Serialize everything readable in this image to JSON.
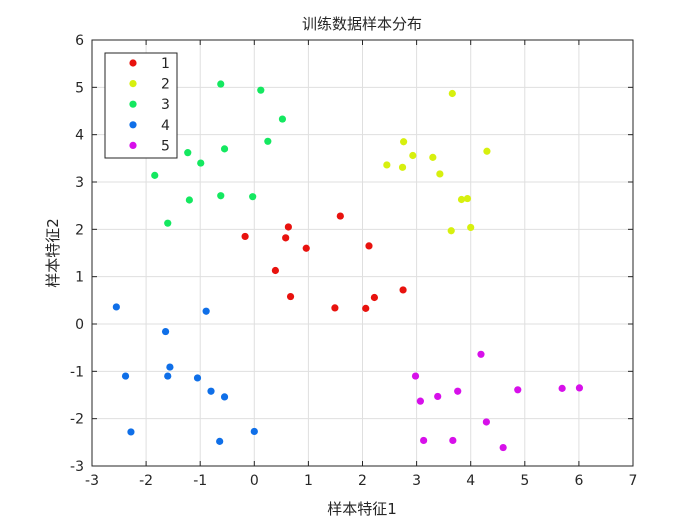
{
  "chart_data": {
    "type": "scatter",
    "title": "训练数据样本分布",
    "xlabel": "样本特征1",
    "ylabel": "样本特征2",
    "xlim": [
      -3,
      7
    ],
    "ylim": [
      -3,
      6
    ],
    "xticks": [
      -3,
      -2,
      -1,
      0,
      1,
      2,
      3,
      4,
      5,
      6,
      7
    ],
    "yticks": [
      -3,
      -2,
      -1,
      0,
      1,
      2,
      3,
      4,
      5,
      6
    ],
    "grid": true,
    "legend_position": "top-left",
    "series": [
      {
        "name": "1",
        "color": "#e8120e",
        "points": [
          [
            -0.17,
            1.85
          ],
          [
            0.39,
            1.13
          ],
          [
            0.58,
            1.82
          ],
          [
            0.63,
            2.05
          ],
          [
            0.67,
            0.58
          ],
          [
            0.96,
            1.6
          ],
          [
            1.49,
            0.34
          ],
          [
            1.59,
            2.28
          ],
          [
            2.06,
            0.33
          ],
          [
            2.12,
            1.65
          ],
          [
            2.22,
            0.56
          ],
          [
            2.75,
            0.72
          ]
        ]
      },
      {
        "name": "2",
        "color": "#d7f00e",
        "points": [
          [
            2.45,
            3.36
          ],
          [
            2.74,
            3.31
          ],
          [
            2.76,
            3.85
          ],
          [
            2.93,
            3.56
          ],
          [
            3.3,
            3.52
          ],
          [
            3.43,
            3.17
          ],
          [
            3.64,
            1.97
          ],
          [
            3.66,
            4.87
          ],
          [
            3.83,
            2.63
          ],
          [
            3.94,
            2.65
          ],
          [
            4.0,
            2.04
          ],
          [
            4.3,
            3.65
          ]
        ]
      },
      {
        "name": "3",
        "color": "#14e860",
        "points": [
          [
            -1.84,
            3.14
          ],
          [
            -1.6,
            2.13
          ],
          [
            -1.23,
            3.62
          ],
          [
            -1.2,
            2.62
          ],
          [
            -0.99,
            3.4
          ],
          [
            -0.62,
            5.07
          ],
          [
            -0.62,
            2.71
          ],
          [
            -0.55,
            3.7
          ],
          [
            -0.03,
            2.69
          ],
          [
            0.12,
            4.94
          ],
          [
            0.25,
            3.86
          ],
          [
            0.52,
            4.33
          ]
        ]
      },
      {
        "name": "4",
        "color": "#0f6fe8",
        "points": [
          [
            -2.55,
            0.36
          ],
          [
            -2.38,
            -1.1
          ],
          [
            -2.28,
            -2.28
          ],
          [
            -1.64,
            -0.16
          ],
          [
            -1.6,
            -1.1
          ],
          [
            -1.56,
            -0.91
          ],
          [
            -1.05,
            -1.14
          ],
          [
            -0.89,
            0.27
          ],
          [
            -0.8,
            -1.42
          ],
          [
            -0.64,
            -2.48
          ],
          [
            -0.55,
            -1.54
          ],
          [
            0.0,
            -2.27
          ]
        ]
      },
      {
        "name": "5",
        "color": "#d710ea",
        "points": [
          [
            2.98,
            -1.1
          ],
          [
            3.07,
            -1.63
          ],
          [
            3.13,
            -2.46
          ],
          [
            3.39,
            -1.53
          ],
          [
            3.67,
            -2.46
          ],
          [
            3.76,
            -1.42
          ],
          [
            4.19,
            -0.64
          ],
          [
            4.29,
            -2.07
          ],
          [
            4.6,
            -2.61
          ],
          [
            4.87,
            -1.39
          ],
          [
            5.69,
            -1.36
          ],
          [
            6.01,
            -1.35
          ]
        ]
      }
    ]
  }
}
